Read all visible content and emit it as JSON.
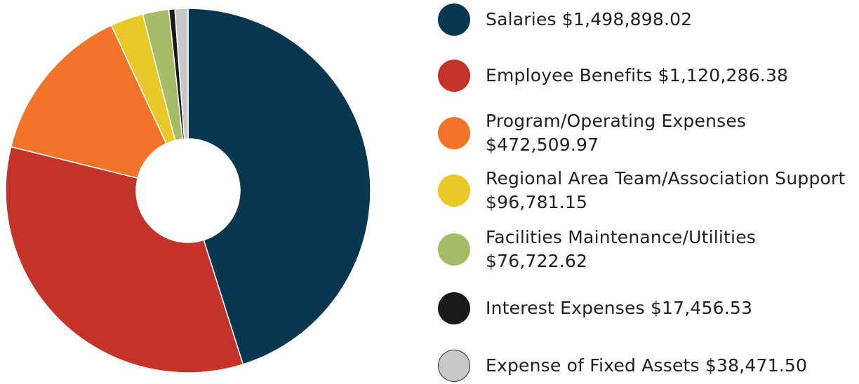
{
  "chart_data": {
    "type": "donut",
    "categories": [
      "Salaries",
      "Employee Benefits",
      "Program/Operating Expenses",
      "Regional Area Team/Association Support",
      "Facilities Maintenance/Utilities",
      "Interest Expenses",
      "Expense of Fixed Assets"
    ],
    "values": [
      1498898.02,
      1120286.38,
      472509.97,
      96781.15,
      76722.62,
      17456.53,
      38471.5
    ],
    "value_labels": [
      "$1,498,898.02",
      "$1,120,286.38",
      "$472,509.97",
      "$96,781.15",
      "$76,722.62",
      "$17,456.53",
      "$38,471.50"
    ],
    "colors": [
      "#08374f",
      "#c4332a",
      "#f2742a",
      "#e9c928",
      "#a6bb66",
      "#1a1a1a",
      "#c8c8c8"
    ],
    "legend": "right"
  }
}
